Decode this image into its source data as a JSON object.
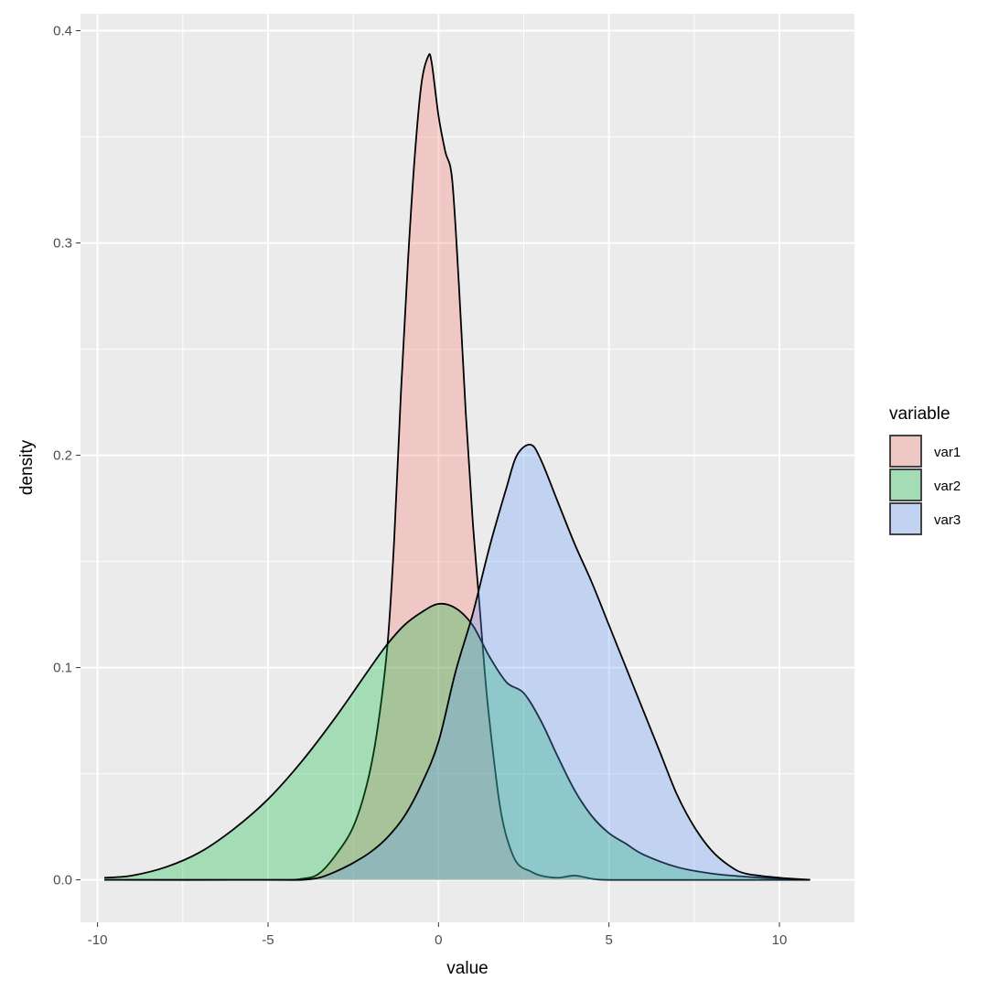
{
  "chart_data": {
    "type": "area",
    "subtype": "density",
    "title": "",
    "xlabel": "value",
    "ylabel": "density",
    "xlim": [
      -10.5,
      12.2
    ],
    "ylim": [
      -0.02,
      0.408
    ],
    "x_ticks": [
      -10,
      -5,
      0,
      5,
      10
    ],
    "x_tick_labels": [
      "-10",
      "-5",
      "0",
      "5",
      "10"
    ],
    "y_ticks": [
      0.0,
      0.1,
      0.2,
      0.3,
      0.4
    ],
    "y_tick_labels": [
      "0.0",
      "0.1",
      "0.2",
      "0.3",
      "0.4"
    ],
    "grid": true,
    "panel_background": "#EBEBEB",
    "fill_opacity": 0.3,
    "legend": {
      "title": "variable",
      "placement": "right"
    },
    "series": [
      {
        "name": "var1",
        "color": "#F8766D",
        "x": [
          -9.8,
          -5.0,
          -4.0,
          -3.5,
          -3.0,
          -2.5,
          -2.1,
          -1.8,
          -1.5,
          -1.3,
          -1.1,
          -0.9,
          -0.7,
          -0.5,
          -0.3,
          -0.2,
          0.0,
          0.2,
          0.4,
          0.6,
          0.8,
          1.0,
          1.2,
          1.4,
          1.6,
          1.8,
          2.0,
          2.3,
          2.7,
          3.0,
          3.5,
          4.0,
          4.5,
          5.0,
          7.0,
          10.9
        ],
        "y": [
          0.0,
          0.0,
          0.0005,
          0.003,
          0.012,
          0.025,
          0.045,
          0.07,
          0.11,
          0.16,
          0.23,
          0.29,
          0.34,
          0.375,
          0.388,
          0.385,
          0.36,
          0.343,
          0.33,
          0.28,
          0.22,
          0.17,
          0.13,
          0.09,
          0.06,
          0.035,
          0.02,
          0.008,
          0.004,
          0.002,
          0.001,
          0.002,
          0.0005,
          0.0,
          0.0,
          0.0
        ]
      },
      {
        "name": "var2",
        "color": "#00BA38",
        "x": [
          -9.8,
          -9.0,
          -8.0,
          -7.0,
          -6.0,
          -5.0,
          -4.0,
          -3.0,
          -2.0,
          -1.5,
          -1.0,
          -0.5,
          0.0,
          0.5,
          1.0,
          1.5,
          2.0,
          2.5,
          3.0,
          3.5,
          4.0,
          4.5,
          5.0,
          5.5,
          6.0,
          7.0,
          8.0,
          9.0,
          10.0,
          10.9
        ],
        "y": [
          0.001,
          0.002,
          0.006,
          0.013,
          0.024,
          0.038,
          0.056,
          0.077,
          0.1,
          0.111,
          0.12,
          0.126,
          0.13,
          0.128,
          0.12,
          0.105,
          0.093,
          0.088,
          0.075,
          0.058,
          0.042,
          0.03,
          0.022,
          0.017,
          0.012,
          0.006,
          0.003,
          0.0015,
          0.0005,
          0.0
        ]
      },
      {
        "name": "var3",
        "color": "#619CFF",
        "x": [
          -9.8,
          -5.0,
          -4.0,
          -3.5,
          -3.0,
          -2.5,
          -2.0,
          -1.5,
          -1.0,
          -0.5,
          0.0,
          0.5,
          1.0,
          1.5,
          2.0,
          2.3,
          2.7,
          3.0,
          3.5,
          4.0,
          4.5,
          5.0,
          5.5,
          6.0,
          6.5,
          7.0,
          7.5,
          8.0,
          8.5,
          9.0,
          10.0,
          10.9
        ],
        "y": [
          0.0,
          0.0,
          0.0,
          0.001,
          0.004,
          0.008,
          0.013,
          0.02,
          0.03,
          0.045,
          0.065,
          0.098,
          0.125,
          0.157,
          0.185,
          0.2,
          0.205,
          0.198,
          0.178,
          0.158,
          0.14,
          0.12,
          0.1,
          0.08,
          0.06,
          0.04,
          0.025,
          0.014,
          0.007,
          0.003,
          0.001,
          0.0
        ]
      }
    ]
  }
}
